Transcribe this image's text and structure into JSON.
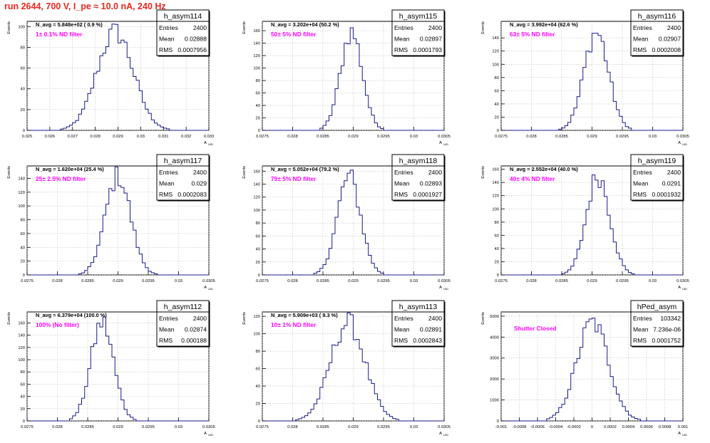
{
  "title": "run 2644,   700 V, I_pe ≈ 10.0 nA, 240 Hz",
  "colors": {
    "title": "#e8261e",
    "hist": "#1a1a8c",
    "filter": "#ff00ff",
    "grid": "#bbbbbb"
  },
  "axis_label_y": "Events",
  "axis_label_x": "A UID",
  "stats_labels": {
    "entries": "Entries",
    "mean": "Mean",
    "rms": "RMS"
  },
  "chart_data": [
    {
      "type": "histogram",
      "name": "h_asym114",
      "navg": "N_avg = 5.848e+02 ( 0.9 %)",
      "filter": "1± 0.1% ND filter",
      "entries": "2400",
      "mean": "0.02888",
      "rms": "0.0007956",
      "mean_val": 0.02888,
      "rms_val": 0.0007956,
      "n": 2400,
      "xlim": [
        0.025,
        0.033
      ],
      "ylim": [
        0,
        105
      ],
      "xticks": [
        "0.025",
        "0.026",
        "0.027",
        "0.028",
        "0.029",
        "0.03",
        "0.031",
        "0.032",
        "0.033"
      ],
      "xtick_vals": [
        0.025,
        0.026,
        0.027,
        0.028,
        0.029,
        0.03,
        0.031,
        0.032,
        0.033
      ],
      "yticks": [
        0,
        20,
        40,
        60,
        80,
        100
      ]
    },
    {
      "type": "histogram",
      "name": "h_asym115",
      "navg": "N_avg = 3.202e+04 (50.2 %)",
      "filter": "50± 5% ND filter",
      "entries": "2400",
      "mean": "0.02897",
      "rms": "0.0001793",
      "mean_val": 0.02897,
      "rms_val": 0.0001793,
      "n": 2400,
      "xlim": [
        0.0275,
        0.0305
      ],
      "ylim": [
        0,
        175
      ],
      "xticks": [
        "0.0275",
        "0.028",
        "0.0285",
        "0.029",
        "0.0295",
        "0.03",
        "0.0305"
      ],
      "xtick_vals": [
        0.0275,
        0.028,
        0.0285,
        0.029,
        0.0295,
        0.03,
        0.0305
      ],
      "yticks": [
        0,
        20,
        40,
        60,
        80,
        100,
        120,
        140,
        160
      ]
    },
    {
      "type": "histogram",
      "name": "h_asym116",
      "navg": "N_avg = 3.992e+04 (62.6 %)",
      "filter": "63± 5% ND filter",
      "entries": "2400",
      "mean": "0.02907",
      "rms": "0.0002008",
      "mean_val": 0.02907,
      "rms_val": 0.0002008,
      "n": 2400,
      "xlim": [
        0.0275,
        0.0305
      ],
      "ylim": [
        0,
        165
      ],
      "xticks": [
        "0.0275",
        "0.028",
        "0.0285",
        "0.029",
        "0.0295",
        "0.03",
        "0.0305"
      ],
      "xtick_vals": [
        0.0275,
        0.028,
        0.0285,
        0.029,
        0.0295,
        0.03,
        0.0305
      ],
      "yticks": [
        0,
        20,
        40,
        60,
        80,
        100,
        120,
        140
      ]
    },
    {
      "type": "histogram",
      "name": "h_asym117",
      "navg": "N_avg = 1.620e+04 (25.4 %)",
      "filter": "25± 2.5% ND filter",
      "entries": "2400",
      "mean": "0.029",
      "rms": "0.0002083",
      "mean_val": 0.029,
      "rms_val": 0.0002083,
      "n": 2400,
      "xlim": [
        0.0275,
        0.0305
      ],
      "ylim": [
        0,
        158
      ],
      "xticks": [
        "0.0275",
        "0.028",
        "0.0285",
        "0.029",
        "0.0295",
        "0.03",
        "0.0305"
      ],
      "xtick_vals": [
        0.0275,
        0.028,
        0.0285,
        0.029,
        0.0295,
        0.03,
        0.0305
      ],
      "yticks": [
        0,
        20,
        40,
        60,
        80,
        100,
        120,
        140
      ]
    },
    {
      "type": "histogram",
      "name": "h_asym118",
      "navg": "N_avg = 5.052e+04 (79.2 %)",
      "filter": "79± 5% ND filter",
      "entries": "2400",
      "mean": "0.02893",
      "rms": "0.0001927",
      "mean_val": 0.02893,
      "rms_val": 0.0001927,
      "n": 2400,
      "xlim": [
        0.0275,
        0.0305
      ],
      "ylim": [
        0,
        168
      ],
      "xticks": [
        "0.0275",
        "0.028",
        "0.0285",
        "0.029",
        "0.0295",
        "0.03",
        "0.0305"
      ],
      "xtick_vals": [
        0.0275,
        0.028,
        0.0285,
        0.029,
        0.0295,
        0.03,
        0.0305
      ],
      "yticks": [
        0,
        20,
        40,
        60,
        80,
        100,
        120,
        140,
        160
      ]
    },
    {
      "type": "histogram",
      "name": "h_asym119",
      "navg": "N_avg = 2.552e+04 (40.0 %)",
      "filter": "40± 4% ND filter",
      "entries": "2400",
      "mean": "0.0291",
      "rms": "0.0001932",
      "mean_val": 0.0291,
      "rms_val": 0.0001932,
      "n": 2400,
      "xlim": [
        0.0275,
        0.0305
      ],
      "ylim": [
        0,
        165
      ],
      "xticks": [
        "0.0275",
        "0.028",
        "0.0285",
        "0.029",
        "0.0295",
        "0.03",
        "0.0305"
      ],
      "xtick_vals": [
        0.0275,
        0.028,
        0.0285,
        0.029,
        0.0295,
        0.03,
        0.0305
      ],
      "yticks": [
        0,
        20,
        40,
        60,
        80,
        100,
        120,
        140,
        160
      ]
    },
    {
      "type": "histogram",
      "name": "h_asym112",
      "navg": "N_avg = 6.379e+04 (100.0 %)",
      "filter": "100% (No filter)",
      "entries": "2400",
      "mean": "0.02874",
      "rms": "0.000188",
      "mean_val": 0.02874,
      "rms_val": 0.000188,
      "n": 2400,
      "xlim": [
        0.0275,
        0.0305
      ],
      "ylim": [
        0,
        178
      ],
      "xticks": [
        "0.0275",
        "0.028",
        "0.0285",
        "0.029",
        "0.0295",
        "0.03",
        "0.0305"
      ],
      "xtick_vals": [
        0.0275,
        0.028,
        0.0285,
        0.029,
        0.0295,
        0.03,
        0.0305
      ],
      "yticks": [
        0,
        20,
        40,
        60,
        80,
        100,
        120,
        140,
        160
      ]
    },
    {
      "type": "histogram",
      "name": "h_asym113",
      "navg": "N_avg = 5.909e+03 ( 9.3 %)",
      "filter": "10± 1% ND filter",
      "entries": "2400",
      "mean": "0.02891",
      "rms": "0.0002843",
      "mean_val": 0.02891,
      "rms_val": 0.0002843,
      "n": 2400,
      "xlim": [
        0.0275,
        0.0305
      ],
      "ylim": [
        0,
        125
      ],
      "xticks": [
        "0.0275",
        "0.028",
        "0.0285",
        "0.029",
        "0.0295",
        "0.03",
        "0.0305"
      ],
      "xtick_vals": [
        0.0275,
        0.028,
        0.0285,
        0.029,
        0.0295,
        0.03,
        0.0305
      ],
      "yticks": [
        0,
        20,
        40,
        60,
        80,
        100,
        120
      ]
    },
    {
      "type": "histogram",
      "name": "hPed_asym",
      "navg": "",
      "filter": "Shutter Closed",
      "entries": "103342",
      "mean": "7.236e-06",
      "rms": "0.0001752",
      "mean_val": 7.236e-06,
      "rms_val": 0.0001752,
      "n": 103342,
      "xlim": [
        -0.001,
        0.001
      ],
      "ylim": [
        0,
        5200
      ],
      "xticks": [
        "-0.001",
        "-0.0008",
        "-0.0006",
        "-0.0004",
        "-0.0002",
        "0",
        "0.0002",
        "0.0004",
        "0.0006",
        "0.0008",
        "0.001"
      ],
      "xtick_vals": [
        -0.001,
        -0.0008,
        -0.0006,
        -0.0004,
        -0.0002,
        0,
        0.0002,
        0.0004,
        0.0006,
        0.0008,
        0.001
      ],
      "yticks": [
        0,
        1000,
        2000,
        3000,
        4000,
        5000
      ]
    }
  ]
}
